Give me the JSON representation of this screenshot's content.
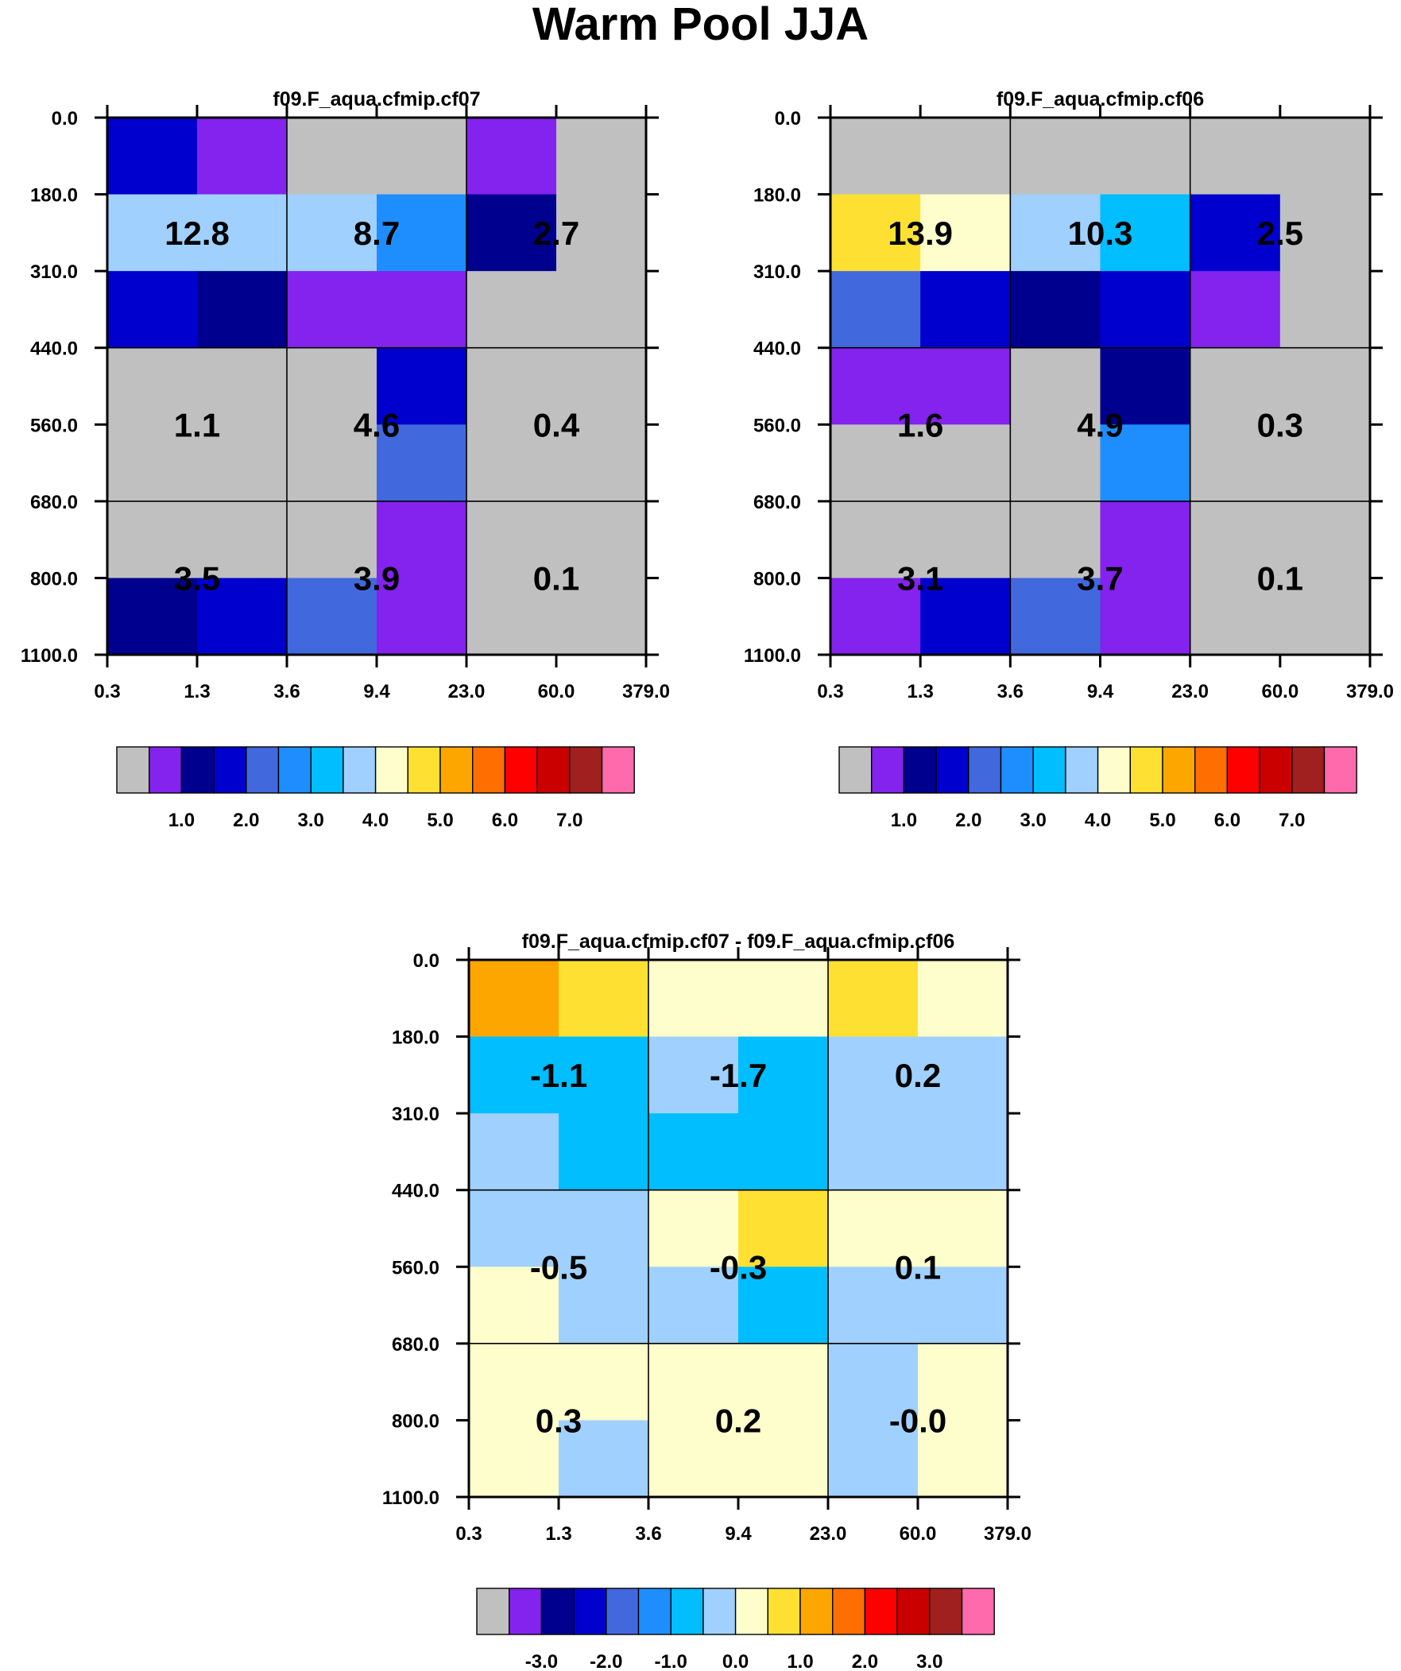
{
  "title": "Warm Pool JJA",
  "colors": {
    "missing": "#c0c0c0",
    "palette": [
      "#8422ee",
      "#00008e",
      "#0000ce",
      "#4268de",
      "#1e8eff",
      "#00beff",
      "#a0d0fe",
      "#fefecc",
      "#fee032",
      "#fea600",
      "#fe6e00",
      "#fe0000",
      "#ca0000",
      "#a02020",
      "#ff6aac"
    ]
  },
  "chart_data": [
    {
      "type": "heatmap",
      "title": "f09.F_aqua.cfmip.cf07",
      "xlabel": "",
      "ylabel": "",
      "x_ticks": [
        "0.3",
        "1.3",
        "3.6",
        "9.4",
        "23.0",
        "60.0",
        "379.0"
      ],
      "y_ticks": [
        "0.0",
        "180.0",
        "310.0",
        "440.0",
        "560.0",
        "680.0",
        "800.0",
        "1100.0"
      ],
      "cells": [
        [
          2,
          0,
          -1,
          -1,
          0,
          -1
        ],
        [
          6,
          6,
          6,
          4,
          1,
          -1
        ],
        [
          2,
          1,
          0,
          0,
          -1,
          -1
        ],
        [
          -1,
          -1,
          -1,
          2,
          -1,
          -1
        ],
        [
          -1,
          -1,
          -1,
          3,
          -1,
          -1
        ],
        [
          -1,
          -1,
          -1,
          0,
          -1,
          -1
        ],
        [
          1,
          2,
          3,
          0,
          -1,
          -1
        ]
      ],
      "annotations": [
        [
          "12.8",
          "8.7",
          "2.7"
        ],
        [
          "1.1",
          "4.6",
          "0.4"
        ],
        [
          "3.5",
          "3.9",
          "0.1"
        ]
      ],
      "colorbar": {
        "labels": [
          "1.0",
          "2.0",
          "3.0",
          "4.0",
          "5.0",
          "6.0",
          "7.0"
        ],
        "first_label_box": 2,
        "box_step": 2
      }
    },
    {
      "type": "heatmap",
      "title": "f09.F_aqua.cfmip.cf06",
      "xlabel": "",
      "ylabel": "",
      "x_ticks": [
        "0.3",
        "1.3",
        "3.6",
        "9.4",
        "23.0",
        "60.0",
        "379.0"
      ],
      "y_ticks": [
        "0.0",
        "180.0",
        "310.0",
        "440.0",
        "560.0",
        "680.0",
        "800.0",
        "1100.0"
      ],
      "cells": [
        [
          -1,
          -1,
          -1,
          -1,
          -1,
          -1
        ],
        [
          8,
          7,
          6,
          5,
          2,
          -1
        ],
        [
          3,
          2,
          1,
          2,
          0,
          -1
        ],
        [
          0,
          0,
          -1,
          1,
          -1,
          -1
        ],
        [
          -1,
          -1,
          -1,
          4,
          -1,
          -1
        ],
        [
          -1,
          -1,
          -1,
          0,
          -1,
          -1
        ],
        [
          0,
          2,
          3,
          0,
          -1,
          -1
        ]
      ],
      "annotations": [
        [
          "13.9",
          "10.3",
          "2.5"
        ],
        [
          "1.6",
          "4.9",
          "0.3"
        ],
        [
          "3.1",
          "3.7",
          "0.1"
        ]
      ],
      "colorbar": {
        "labels": [
          "1.0",
          "2.0",
          "3.0",
          "4.0",
          "5.0",
          "6.0",
          "7.0"
        ],
        "first_label_box": 2,
        "box_step": 2
      }
    },
    {
      "type": "heatmap",
      "title": "f09.F_aqua.cfmip.cf07 - f09.F_aqua.cfmip.cf06",
      "xlabel": "",
      "ylabel": "",
      "x_ticks": [
        "0.3",
        "1.3",
        "3.6",
        "9.4",
        "23.0",
        "60.0",
        "379.0"
      ],
      "y_ticks": [
        "0.0",
        "180.0",
        "310.0",
        "440.0",
        "560.0",
        "680.0",
        "800.0",
        "1100.0"
      ],
      "cells": [
        [
          9,
          8,
          7,
          7,
          8,
          7
        ],
        [
          5,
          5,
          6,
          5,
          6,
          6
        ],
        [
          6,
          5,
          5,
          5,
          6,
          6
        ],
        [
          6,
          6,
          7,
          8,
          7,
          7
        ],
        [
          7,
          6,
          6,
          5,
          6,
          6
        ],
        [
          7,
          7,
          7,
          7,
          6,
          7
        ],
        [
          7,
          6,
          7,
          7,
          6,
          7
        ]
      ],
      "annotations": [
        [
          "-1.1",
          "-1.7",
          "0.2"
        ],
        [
          "-0.5",
          "-0.3",
          "0.1"
        ],
        [
          "0.3",
          "0.2",
          "-0.0"
        ]
      ],
      "colorbar": {
        "labels": [
          "-3.0",
          "-2.0",
          "-1.0",
          "0.0",
          "1.0",
          "2.0",
          "3.0"
        ],
        "first_label_box": 2,
        "box_step": 2
      }
    }
  ]
}
